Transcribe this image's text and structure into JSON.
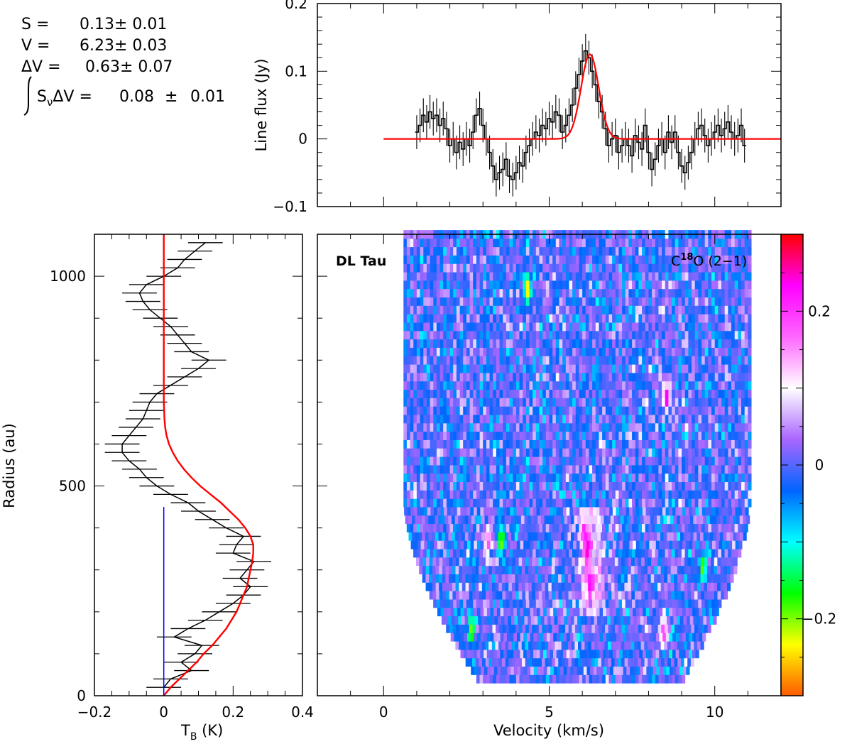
{
  "fit_results": {
    "S": {
      "label": "S =",
      "value": "0.13± 0.01"
    },
    "V": {
      "label": "V =",
      "value": "6.23± 0.03"
    },
    "dV": {
      "label": "ΔV =",
      "value": "0.63± 0.07"
    },
    "integral": {
      "label": "S",
      "label_sub": "ν",
      "label_tail": "ΔV =",
      "value": "0.08",
      "pm": "±",
      "err": "0.01"
    }
  },
  "chart_data": [
    {
      "id": "spectrum",
      "type": "line",
      "title": "",
      "xlabel": "",
      "ylabel": "Line flux (Jy)",
      "xlim": [
        -2,
        12
      ],
      "ylim": [
        -0.1,
        0.2
      ],
      "yticks": [
        -0.1,
        0,
        0.1,
        0.2
      ],
      "ytick_labels": [
        "−0.1",
        "0",
        "0.1",
        "0.2"
      ],
      "series": [
        {
          "name": "observed",
          "style": "step-with-errorbars",
          "color": "#000000",
          "x": [
            1.0,
            1.1,
            1.2,
            1.3,
            1.4,
            1.5,
            1.6,
            1.7,
            1.8,
            1.9,
            2.0,
            2.1,
            2.2,
            2.3,
            2.4,
            2.5,
            2.6,
            2.7,
            2.8,
            2.9,
            3.0,
            3.1,
            3.2,
            3.3,
            3.4,
            3.5,
            3.6,
            3.7,
            3.8,
            3.9,
            4.0,
            4.1,
            4.2,
            4.3,
            4.4,
            4.5,
            4.6,
            4.7,
            4.8,
            4.9,
            5.0,
            5.1,
            5.2,
            5.3,
            5.4,
            5.5,
            5.6,
            5.7,
            5.8,
            5.9,
            6.0,
            6.1,
            6.2,
            6.3,
            6.4,
            6.5,
            6.6,
            6.7,
            6.8,
            6.9,
            7.0,
            7.1,
            7.2,
            7.3,
            7.4,
            7.5,
            7.6,
            7.7,
            7.8,
            7.9,
            8.0,
            8.1,
            8.2,
            8.3,
            8.4,
            8.5,
            8.6,
            8.7,
            8.8,
            8.9,
            9.0,
            9.1,
            9.2,
            9.3,
            9.4,
            9.5,
            9.6,
            9.7,
            9.8,
            9.9,
            10.0,
            10.1,
            10.2,
            10.3,
            10.4,
            10.5,
            10.6,
            10.7,
            10.8,
            10.9
          ],
          "values": [
            0.01,
            0.02,
            0.035,
            0.025,
            0.04,
            0.03,
            0.035,
            0.02,
            0.03,
            0.015,
            -0.01,
            0.0,
            -0.02,
            -0.005,
            -0.015,
            0.0,
            -0.01,
            0.01,
            0.035,
            0.045,
            0.02,
            0.0,
            -0.02,
            -0.04,
            -0.06,
            -0.05,
            -0.045,
            -0.03,
            -0.055,
            -0.06,
            -0.05,
            -0.035,
            -0.04,
            -0.02,
            -0.01,
            0.0,
            0.01,
            0.005,
            0.02,
            0.015,
            0.03,
            0.025,
            0.04,
            0.035,
            0.01,
            0.02,
            0.035,
            0.05,
            0.075,
            0.095,
            0.115,
            0.13,
            0.12,
            0.1,
            0.08,
            0.055,
            0.04,
            0.015,
            -0.01,
            0.0,
            0.005,
            -0.02,
            -0.01,
            0.0,
            -0.01,
            -0.025,
            0.005,
            -0.005,
            -0.015,
            0.02,
            -0.02,
            -0.045,
            -0.03,
            -0.01,
            0.0,
            -0.02,
            0.01,
            -0.005,
            0.01,
            -0.02,
            -0.04,
            -0.05,
            -0.035,
            -0.02,
            0.0,
            0.015,
            0.02,
            0.005,
            -0.01,
            0.0,
            0.01,
            0.02,
            0.005,
            0.015,
            0.025,
            0.01,
            0.0,
            0.005,
            0.02,
            -0.01
          ],
          "error": 0.025
        },
        {
          "name": "gaussian fit",
          "style": "line",
          "color": "#ff0000",
          "model": {
            "amplitude": 0.125,
            "center": 6.23,
            "fwhm": 0.63
          },
          "x_range": [
            0,
            12
          ]
        }
      ]
    },
    {
      "id": "radial-profile",
      "type": "line",
      "title": "",
      "xlabel": "T",
      "xlabel_sub": "B",
      "xlabel_tail": " (K)",
      "ylabel": "Radius (au)",
      "xlim": [
        -0.2,
        0.4
      ],
      "ylim": [
        0,
        1100
      ],
      "xticks": [
        -0.2,
        0,
        0.2,
        0.4
      ],
      "xtick_labels": [
        "−0.2",
        "0",
        "0.2",
        "0.4"
      ],
      "yticks": [
        0,
        500,
        1000
      ],
      "ytick_labels": [
        "0",
        "500",
        "1000"
      ],
      "series": [
        {
          "name": "observed profile",
          "color": "#000000",
          "style": "line-with-xerrorbars",
          "radius": [
            20,
            40,
            60,
            80,
            100,
            120,
            140,
            160,
            180,
            200,
            220,
            240,
            260,
            280,
            300,
            320,
            340,
            360,
            380,
            400,
            420,
            440,
            460,
            480,
            500,
            520,
            540,
            560,
            580,
            600,
            620,
            640,
            660,
            680,
            700,
            720,
            740,
            760,
            780,
            800,
            820,
            840,
            860,
            880,
            900,
            920,
            940,
            960,
            980,
            1000,
            1020,
            1040,
            1060,
            1080
          ],
          "values": [
            0.0,
            0.02,
            0.08,
            0.05,
            0.09,
            0.11,
            0.03,
            0.07,
            0.12,
            0.16,
            0.2,
            0.23,
            0.25,
            0.22,
            0.24,
            0.26,
            0.2,
            0.21,
            0.23,
            0.18,
            0.14,
            0.1,
            0.07,
            0.02,
            -0.02,
            -0.05,
            -0.07,
            -0.1,
            -0.12,
            -0.12,
            -0.1,
            -0.08,
            -0.06,
            -0.05,
            -0.04,
            -0.02,
            0.02,
            0.06,
            0.1,
            0.13,
            0.08,
            0.06,
            0.04,
            0.02,
            -0.01,
            -0.04,
            -0.06,
            -0.07,
            -0.05,
            0.0,
            0.04,
            0.06,
            0.09,
            0.12
          ],
          "xerror": 0.05
        },
        {
          "name": "model",
          "color": "#ff0000",
          "style": "line",
          "radius": [
            0,
            20,
            40,
            60,
            80,
            100,
            120,
            140,
            160,
            180,
            200,
            220,
            240,
            260,
            280,
            300,
            320,
            340,
            360,
            380,
            400,
            420,
            440,
            460,
            480,
            500,
            520,
            540,
            560,
            580,
            600,
            620,
            640,
            660,
            680,
            700,
            750,
            800,
            900,
            1000,
            1100
          ],
          "values": [
            0.0,
            0.02,
            0.045,
            0.07,
            0.095,
            0.115,
            0.14,
            0.16,
            0.18,
            0.195,
            0.21,
            0.22,
            0.23,
            0.24,
            0.245,
            0.25,
            0.255,
            0.258,
            0.258,
            0.25,
            0.235,
            0.215,
            0.19,
            0.165,
            0.135,
            0.105,
            0.08,
            0.058,
            0.04,
            0.026,
            0.015,
            0.008,
            0.004,
            0.002,
            0.001,
            0.0,
            0.0,
            0.0,
            0.0,
            0.0,
            0.0
          ]
        },
        {
          "name": "zero reference",
          "color": "#0000ff",
          "style": "line",
          "radius": [
            0,
            450
          ],
          "values": [
            0,
            0
          ]
        }
      ]
    },
    {
      "id": "pv-diagram",
      "type": "heatmap",
      "title": "",
      "xlabel": "Velocity (km/s)",
      "ylabel": "Radius (au)",
      "xlim": [
        -2,
        12
      ],
      "ylim": [
        0,
        1100
      ],
      "xticks": [
        0,
        5,
        10
      ],
      "xtick_labels": [
        "0",
        "5",
        "10"
      ],
      "source_label": "DL Tau",
      "line_label": {
        "prefix": "C",
        "sup": "18",
        "suffix": "O (2−1)"
      },
      "data_extent": {
        "velocity": [
          0.6,
          11.0
        ],
        "radius": [
          30,
          1100
        ]
      },
      "hot_spots": [
        {
          "velocity": 6.1,
          "radius": 340,
          "value": 0.26
        },
        {
          "velocity": 6.2,
          "radius": 260,
          "value": 0.25
        },
        {
          "velocity": 6.0,
          "radius": 380,
          "value": 0.22
        },
        {
          "velocity": 3.1,
          "radius": 360,
          "value": 0.2
        },
        {
          "velocity": 8.5,
          "radius": 700,
          "value": 0.25
        },
        {
          "velocity": 4.3,
          "radius": 960,
          "value": -0.25
        },
        {
          "velocity": 3.5,
          "radius": 360,
          "value": -0.22
        },
        {
          "velocity": 8.4,
          "radius": 140,
          "value": 0.2
        },
        {
          "velocity": 2.6,
          "radius": 150,
          "value": -0.2
        },
        {
          "velocity": 9.6,
          "radius": 300,
          "value": -0.2
        }
      ],
      "colorbar": {
        "range": [
          -0.3,
          0.3
        ],
        "ticks": [
          0.2,
          0,
          -0.2
        ],
        "tick_labels": [
          "0.2",
          "0",
          "−0.2"
        ],
        "colors": [
          "#ff5a00",
          "#ffff00",
          "#00ff00",
          "#00ffff",
          "#0066ff",
          "#aa66ff",
          "#ffffff",
          "#ff66ff",
          "#ff00ff",
          "#ff0000"
        ]
      }
    }
  ]
}
